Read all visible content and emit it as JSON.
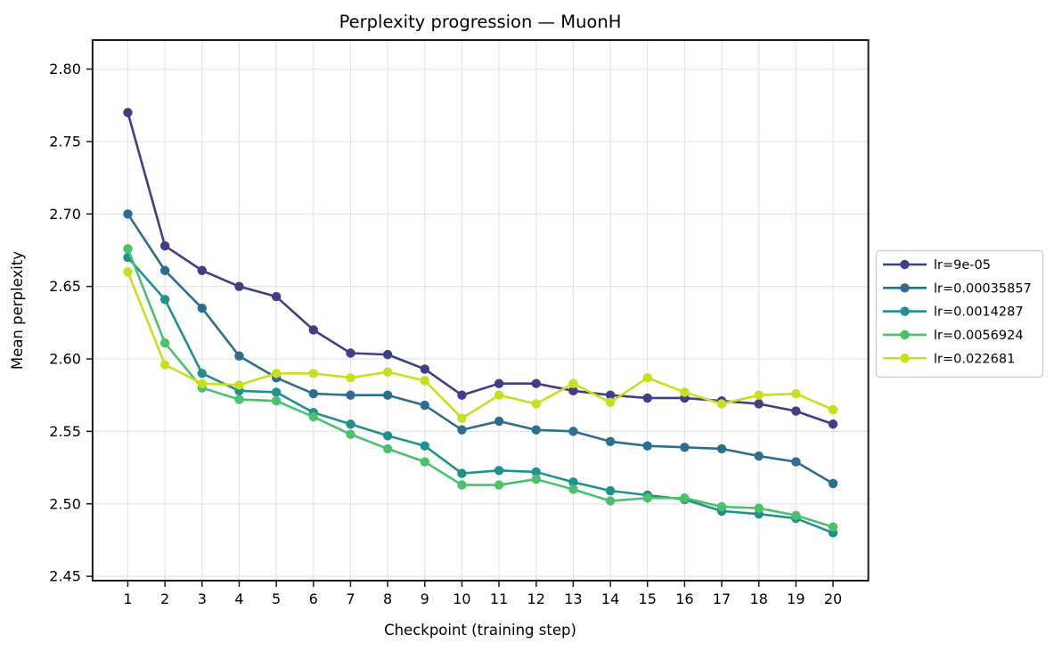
{
  "figure": {
    "background": "#ffffff",
    "text_color": "#000000",
    "spine_color": "#1a1a1a",
    "grid_color": "#e5e5e5",
    "legend_border_color": "#cccccc"
  },
  "chart_data": {
    "type": "line",
    "title": "Perplexity progression — MuonH",
    "xlabel": "Checkpoint (training step)",
    "ylabel": "Mean perplexity",
    "grid": true,
    "marker": "circle",
    "legend_position": "right-outside",
    "x": [
      1,
      2,
      3,
      4,
      5,
      6,
      7,
      8,
      9,
      10,
      11,
      12,
      13,
      14,
      15,
      16,
      17,
      18,
      19,
      20
    ],
    "xticks": [
      1,
      2,
      3,
      4,
      5,
      6,
      7,
      8,
      9,
      10,
      11,
      12,
      13,
      14,
      15,
      16,
      17,
      18,
      19,
      20
    ],
    "yticks": [
      2.45,
      2.5,
      2.55,
      2.6,
      2.65,
      2.7,
      2.75,
      2.8
    ],
    "xlim": [
      0.05,
      20.95
    ],
    "ylim": [
      2.447,
      2.82
    ],
    "series": [
      {
        "name": "lr=9e-05",
        "color": "#3f3e87",
        "values": [
          2.77,
          2.678,
          2.661,
          2.65,
          2.643,
          2.62,
          2.604,
          2.603,
          2.593,
          2.575,
          2.583,
          2.583,
          2.578,
          2.575,
          2.573,
          2.573,
          2.571,
          2.569,
          2.564,
          2.555
        ]
      },
      {
        "name": "lr=0.00035857",
        "color": "#2d6e8e",
        "values": [
          2.7,
          2.661,
          2.635,
          2.602,
          2.587,
          2.576,
          2.575,
          2.575,
          2.568,
          2.551,
          2.557,
          2.551,
          2.55,
          2.543,
          2.54,
          2.539,
          2.538,
          2.533,
          2.529,
          2.514
        ]
      },
      {
        "name": "lr=0.0014287",
        "color": "#21918c",
        "values": [
          2.67,
          2.641,
          2.59,
          2.578,
          2.577,
          2.563,
          2.555,
          2.547,
          2.54,
          2.521,
          2.523,
          2.522,
          2.515,
          2.509,
          2.506,
          2.503,
          2.495,
          2.493,
          2.49,
          2.48
        ]
      },
      {
        "name": "lr=0.0056924",
        "color": "#4ac16d",
        "values": [
          2.676,
          2.611,
          2.58,
          2.572,
          2.571,
          2.56,
          2.548,
          2.538,
          2.529,
          2.513,
          2.513,
          2.517,
          2.51,
          2.502,
          2.504,
          2.504,
          2.498,
          2.497,
          2.492,
          2.484
        ]
      },
      {
        "name": "lr=0.022681",
        "color": "#c6e01e",
        "values": [
          2.66,
          2.596,
          2.583,
          2.582,
          2.59,
          2.59,
          2.587,
          2.591,
          2.585,
          2.559,
          2.575,
          2.569,
          2.583,
          2.57,
          2.587,
          2.577,
          2.569,
          2.575,
          2.576,
          2.565
        ]
      }
    ]
  }
}
